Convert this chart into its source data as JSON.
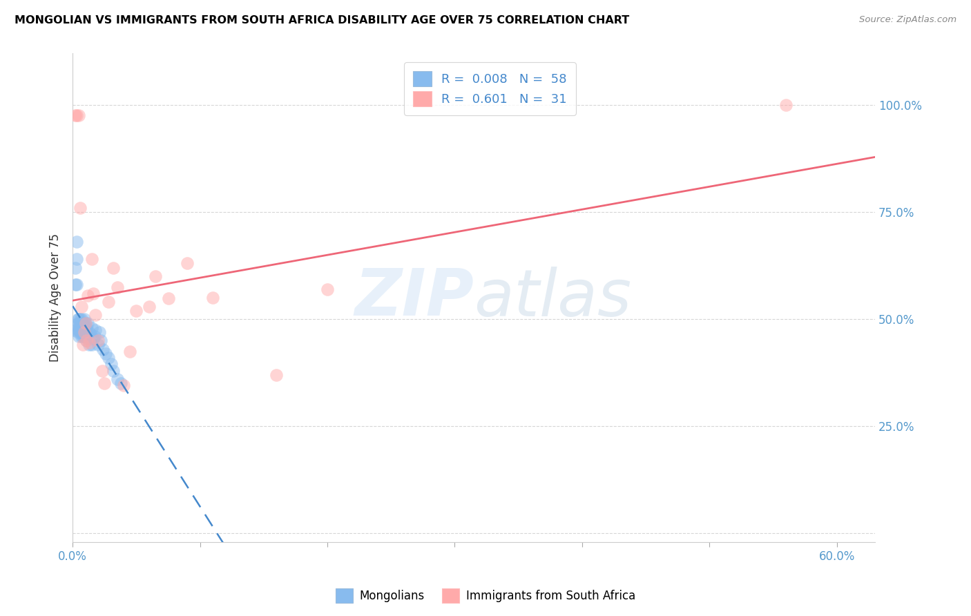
{
  "title": "MONGOLIAN VS IMMIGRANTS FROM SOUTH AFRICA DISABILITY AGE OVER 75 CORRELATION CHART",
  "source": "Source: ZipAtlas.com",
  "ylabel": "Disability Age Over 75",
  "xlim": [
    0.0,
    0.63
  ],
  "ylim": [
    -0.02,
    1.12
  ],
  "y_tick_positions": [
    0.0,
    0.25,
    0.5,
    0.75,
    1.0
  ],
  "y_tick_labels": [
    "",
    "25.0%",
    "50.0%",
    "75.0%",
    "100.0%"
  ],
  "x_tick_positions": [
    0.0,
    0.1,
    0.2,
    0.3,
    0.4,
    0.5,
    0.6
  ],
  "x_tick_labels": [
    "0.0%",
    "",
    "",
    "",
    "",
    "",
    "60.0%"
  ],
  "mongolian_R": "0.008",
  "mongolian_N": "58",
  "sa_R": "0.601",
  "sa_N": "31",
  "mongolian_color": "#88bbee",
  "sa_color": "#ffaaaa",
  "mongolian_trend_color": "#4488cc",
  "sa_trend_color": "#ee6677",
  "background_color": "#ffffff",
  "grid_color": "#cccccc",
  "watermark_line1": "ZIP",
  "watermark_line2": "atlas",
  "mongolian_x": [
    0.001,
    0.002,
    0.002,
    0.003,
    0.003,
    0.003,
    0.004,
    0.004,
    0.004,
    0.004,
    0.005,
    0.005,
    0.005,
    0.005,
    0.005,
    0.006,
    0.006,
    0.006,
    0.006,
    0.007,
    0.007,
    0.007,
    0.007,
    0.007,
    0.008,
    0.008,
    0.008,
    0.008,
    0.009,
    0.009,
    0.009,
    0.009,
    0.01,
    0.01,
    0.01,
    0.011,
    0.011,
    0.011,
    0.012,
    0.012,
    0.013,
    0.013,
    0.014,
    0.015,
    0.015,
    0.016,
    0.017,
    0.018,
    0.02,
    0.021,
    0.022,
    0.024,
    0.026,
    0.028,
    0.03,
    0.032,
    0.035,
    0.038
  ],
  "mongolian_y": [
    0.475,
    0.62,
    0.58,
    0.68,
    0.64,
    0.58,
    0.5,
    0.47,
    0.49,
    0.475,
    0.5,
    0.48,
    0.46,
    0.49,
    0.475,
    0.5,
    0.49,
    0.48,
    0.47,
    0.5,
    0.49,
    0.48,
    0.475,
    0.46,
    0.49,
    0.48,
    0.47,
    0.46,
    0.5,
    0.49,
    0.48,
    0.46,
    0.49,
    0.48,
    0.46,
    0.48,
    0.47,
    0.45,
    0.49,
    0.455,
    0.47,
    0.44,
    0.465,
    0.48,
    0.44,
    0.455,
    0.46,
    0.475,
    0.44,
    0.47,
    0.45,
    0.43,
    0.42,
    0.41,
    0.395,
    0.38,
    0.36,
    0.35
  ],
  "sa_x": [
    0.002,
    0.003,
    0.005,
    0.006,
    0.007,
    0.008,
    0.009,
    0.01,
    0.011,
    0.012,
    0.013,
    0.015,
    0.016,
    0.018,
    0.02,
    0.023,
    0.025,
    0.028,
    0.032,
    0.035,
    0.04,
    0.045,
    0.05,
    0.06,
    0.065,
    0.075,
    0.09,
    0.11,
    0.16,
    0.2,
    0.56
  ],
  "sa_y": [
    0.975,
    0.975,
    0.975,
    0.76,
    0.53,
    0.44,
    0.47,
    0.49,
    0.45,
    0.555,
    0.445,
    0.64,
    0.56,
    0.51,
    0.45,
    0.38,
    0.35,
    0.54,
    0.62,
    0.575,
    0.345,
    0.425,
    0.52,
    0.53,
    0.6,
    0.548,
    0.63,
    0.55,
    0.37,
    0.57,
    1.0
  ],
  "legend_facecolor": "#ffffff",
  "legend_edgecolor": "#cccccc"
}
